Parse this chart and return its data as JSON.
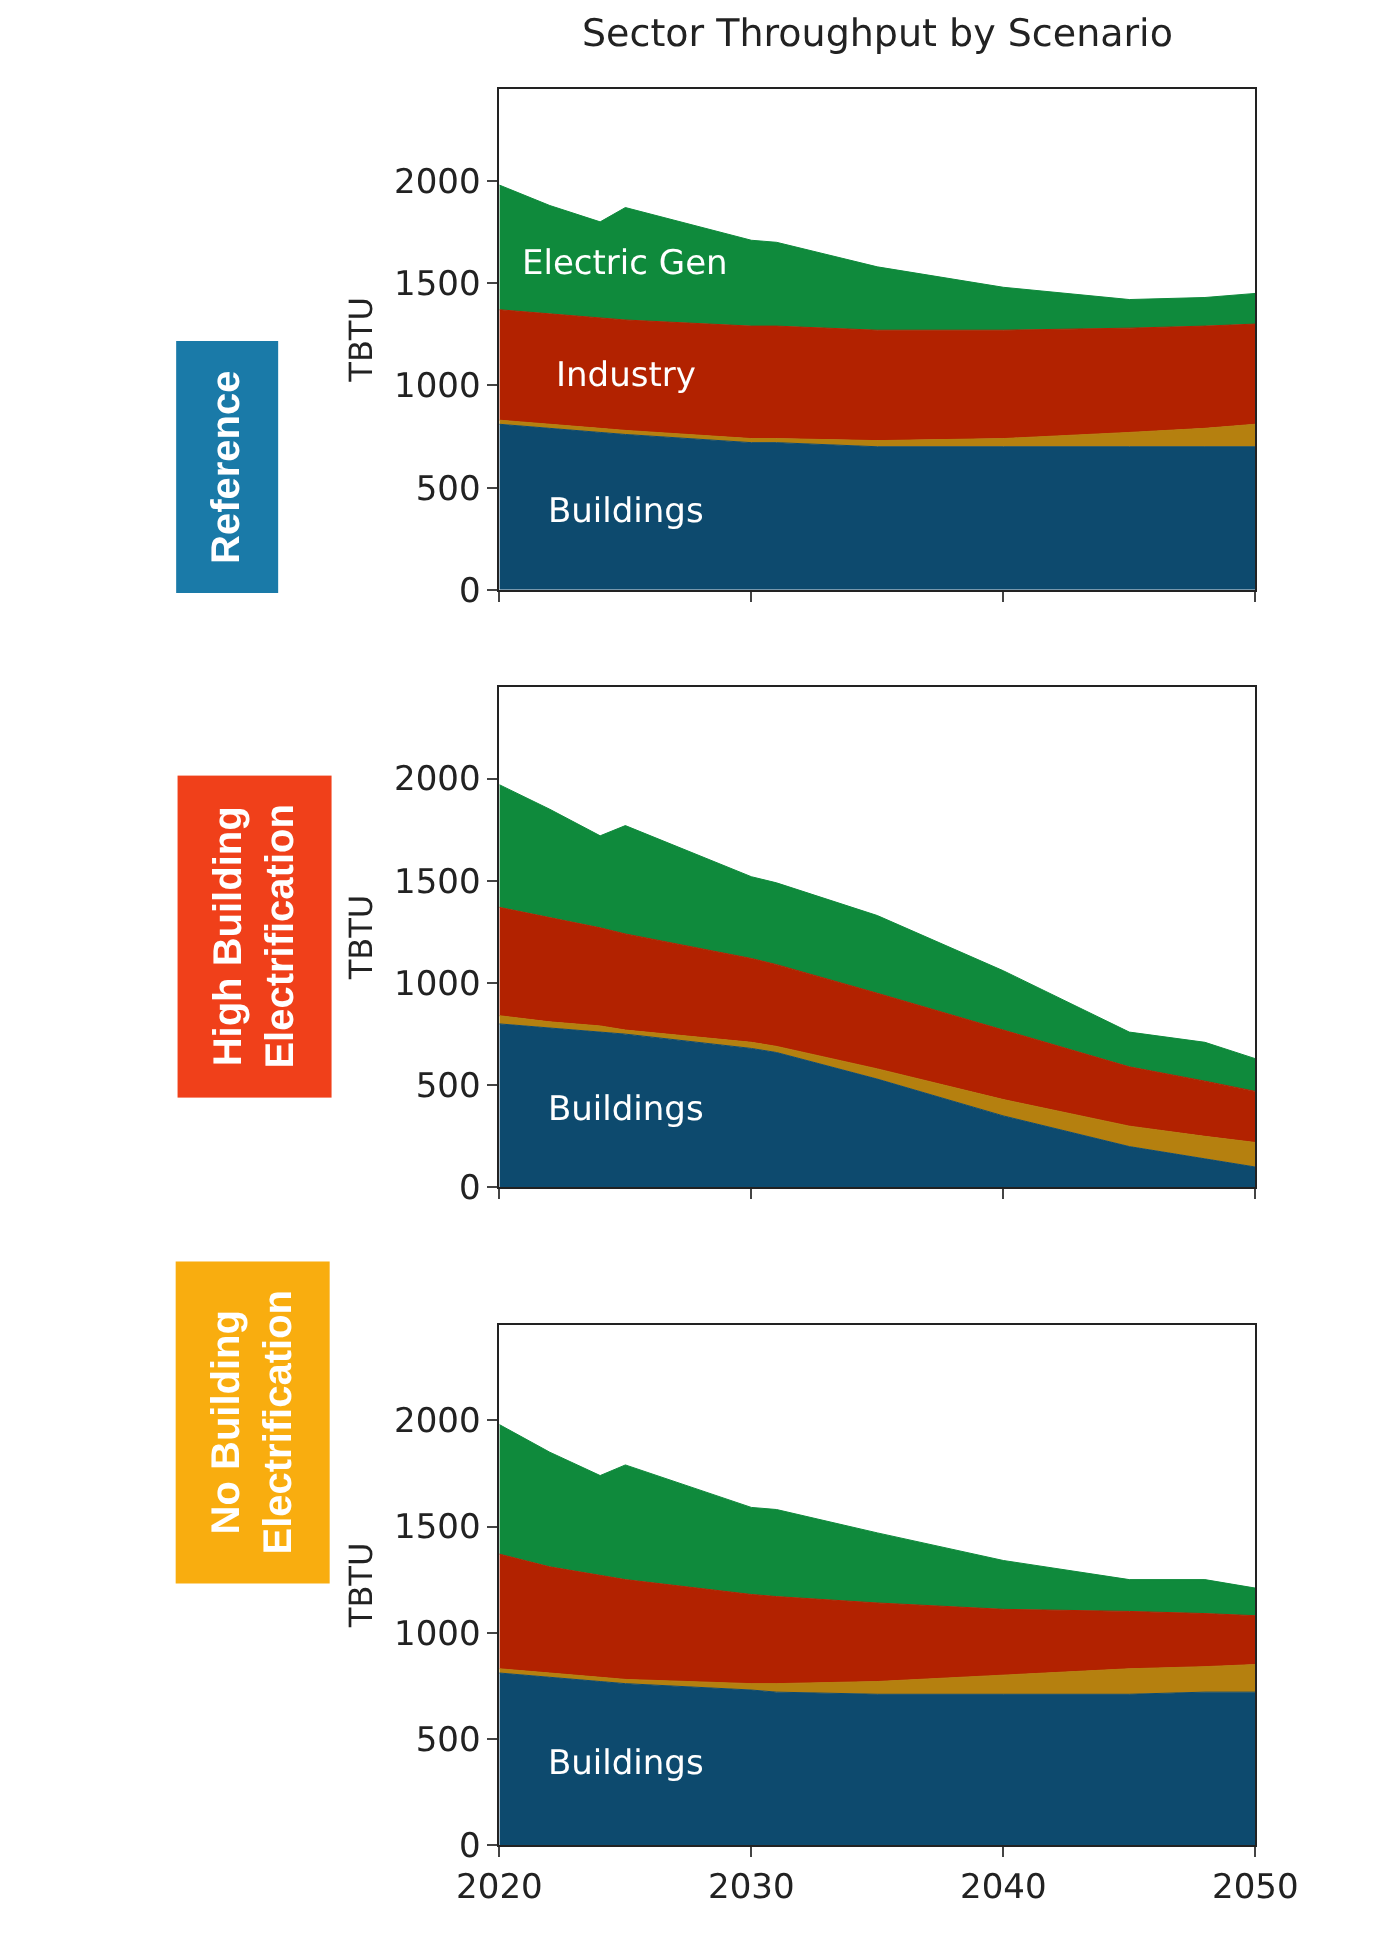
{
  "chart_data": [
    {
      "type": "area",
      "stacked": true,
      "title": "Sector Throughput by Scenario",
      "ylabel": "TBTU",
      "annotations": [
        "Reference"
      ],
      "x": [
        2020,
        2022,
        2024,
        2025,
        2030,
        2031,
        2035,
        2040,
        2045,
        2048,
        2050
      ],
      "series": [
        {
          "name": "Buildings",
          "color": "#0d4a6e",
          "values": [
            810,
            790,
            770,
            760,
            720,
            720,
            700,
            700,
            700,
            700,
            700
          ]
        },
        {
          "color": "#b5800f",
          "values": [
            20,
            20,
            20,
            20,
            20,
            20,
            30,
            40,
            70,
            90,
            110
          ]
        },
        {
          "name": "Industry",
          "color": "#b22200",
          "values": [
            540,
            540,
            540,
            540,
            550,
            550,
            540,
            530,
            510,
            500,
            490
          ]
        },
        {
          "name": "Electric Gen",
          "color": "#0f8a3c",
          "values": [
            610,
            530,
            470,
            550,
            420,
            410,
            310,
            210,
            140,
            140,
            150
          ]
        }
      ],
      "xlim": [
        2020,
        2050
      ],
      "xticks": [
        2020,
        2030,
        2040,
        2050
      ],
      "ylim": [
        0,
        2450
      ],
      "yticks": [
        0,
        500,
        1000,
        1500,
        2000
      ],
      "tick_labels": "y"
    },
    {
      "type": "area",
      "stacked": true,
      "ylabel": "TBTU",
      "annotations": [
        "High Building Electrification"
      ],
      "x": [
        2020,
        2022,
        2024,
        2025,
        2030,
        2031,
        2035,
        2040,
        2045,
        2048,
        2050
      ],
      "series": [
        {
          "name": "Buildings",
          "color": "#0d4a6e",
          "values": [
            800,
            780,
            760,
            750,
            680,
            660,
            530,
            350,
            200,
            140,
            100
          ]
        },
        {
          "color": "#b5800f",
          "values": [
            40,
            30,
            30,
            20,
            30,
            30,
            50,
            80,
            100,
            110,
            120
          ]
        },
        {
          "color": "#b22200",
          "values": [
            530,
            510,
            480,
            470,
            410,
            400,
            370,
            340,
            290,
            270,
            250
          ]
        },
        {
          "color": "#0f8a3c",
          "values": [
            600,
            530,
            450,
            530,
            400,
            400,
            380,
            290,
            170,
            190,
            160
          ]
        }
      ],
      "xlim": [
        2020,
        2050
      ],
      "xticks": [
        2020,
        2030,
        2040,
        2050
      ],
      "ylim": [
        0,
        2450
      ],
      "yticks": [
        0,
        500,
        1000,
        1500,
        2000
      ],
      "tick_labels": "y"
    },
    {
      "type": "area",
      "stacked": true,
      "ylabel": "TBTU",
      "annotations": [
        "No Building Electrification"
      ],
      "x": [
        2020,
        2022,
        2024,
        2025,
        2030,
        2031,
        2035,
        2040,
        2045,
        2048,
        2050
      ],
      "series": [
        {
          "name": "Buildings",
          "color": "#0d4a6e",
          "values": [
            810,
            790,
            770,
            760,
            730,
            720,
            710,
            710,
            710,
            720,
            720
          ]
        },
        {
          "color": "#b5800f",
          "values": [
            20,
            20,
            20,
            20,
            30,
            40,
            60,
            90,
            120,
            120,
            130
          ]
        },
        {
          "color": "#b22200",
          "values": [
            540,
            500,
            480,
            470,
            420,
            410,
            370,
            310,
            270,
            250,
            230
          ]
        },
        {
          "color": "#0f8a3c",
          "values": [
            610,
            540,
            470,
            540,
            410,
            410,
            330,
            230,
            150,
            160,
            130
          ]
        }
      ],
      "xlim": [
        2020,
        2050
      ],
      "xticks": [
        2020,
        2030,
        2040,
        2050
      ],
      "ylim": [
        0,
        2450
      ],
      "yticks": [
        0,
        500,
        1000,
        1500,
        2000
      ]
    }
  ]
}
